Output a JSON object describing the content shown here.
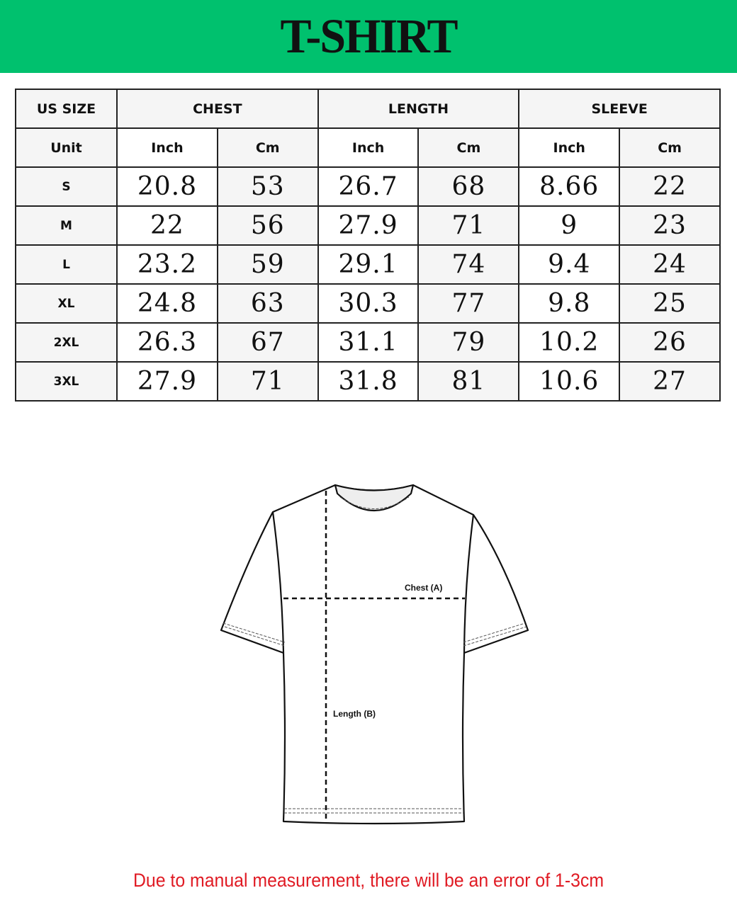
{
  "title": "T-SHIRT",
  "colors": {
    "banner": "#00c16e",
    "note": "#e01b24"
  },
  "table": {
    "groups": [
      "US SIZE",
      "CHEST",
      "LENGTH",
      "SLEEVE"
    ],
    "unit_label": "Unit",
    "units": [
      "Inch",
      "Cm",
      "Inch",
      "Cm",
      "Inch",
      "Cm"
    ],
    "rows": [
      {
        "size": "S",
        "values": [
          "20.8",
          "53",
          "26.7",
          "68",
          "8.66",
          "22"
        ]
      },
      {
        "size": "M",
        "values": [
          "22",
          "56",
          "27.9",
          "71",
          "9",
          "23"
        ]
      },
      {
        "size": "L",
        "values": [
          "23.2",
          "59",
          "29.1",
          "74",
          "9.4",
          "24"
        ]
      },
      {
        "size": "XL",
        "values": [
          "24.8",
          "63",
          "30.3",
          "77",
          "9.8",
          "25"
        ]
      },
      {
        "size": "2XL",
        "values": [
          "26.3",
          "67",
          "31.1",
          "79",
          "10.2",
          "26"
        ]
      },
      {
        "size": "3XL",
        "values": [
          "27.9",
          "71",
          "31.8",
          "81",
          "10.6",
          "27"
        ]
      }
    ]
  },
  "diagram": {
    "chest_label": "Chest (A)",
    "length_label": "Length (B)"
  },
  "note": "Due to manual measurement, there will be an error of 1-3cm"
}
